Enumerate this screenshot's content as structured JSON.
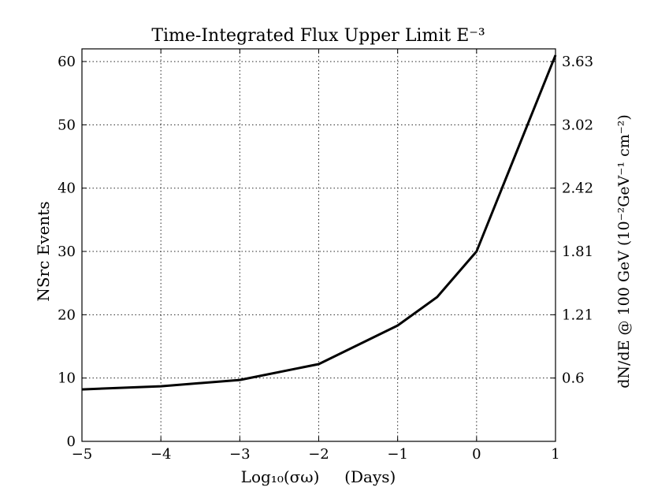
{
  "chart_data": {
    "type": "line",
    "title": "Time-Integrated Flux Upper Limit E⁻³",
    "xlabel": "Log₁₀(σω)     (Days)",
    "ylabel": "NSrc Events",
    "y2label": "dN/dE @ 100 GeV (10⁻²GeV⁻¹ cm⁻²)",
    "xlim": [
      -5,
      1
    ],
    "ylim": [
      0,
      62
    ],
    "x_ticks": [
      "−5",
      "−4",
      "−3",
      "−2",
      "−1",
      "0",
      "1"
    ],
    "x_tick_values": [
      -5,
      -4,
      -3,
      -2,
      -1,
      0,
      1
    ],
    "y_ticks": [
      "0",
      "10",
      "20",
      "30",
      "40",
      "50",
      "60"
    ],
    "y_tick_values": [
      0,
      10,
      20,
      30,
      40,
      50,
      60
    ],
    "y2_ticks": [
      "0.6",
      "1.21",
      "1.81",
      "2.42",
      "3.02",
      "3.63"
    ],
    "y2_tick_values": [
      10,
      20,
      30,
      40,
      50,
      60
    ],
    "grid": true,
    "series": [
      {
        "x": [
          -5,
          -4,
          -3,
          -2,
          -1,
          -0.5,
          0,
          1
        ],
        "values": [
          8.2,
          8.7,
          9.7,
          12.2,
          18.3,
          22.8,
          30.0,
          61.0
        ],
        "color": "#000000"
      }
    ]
  }
}
